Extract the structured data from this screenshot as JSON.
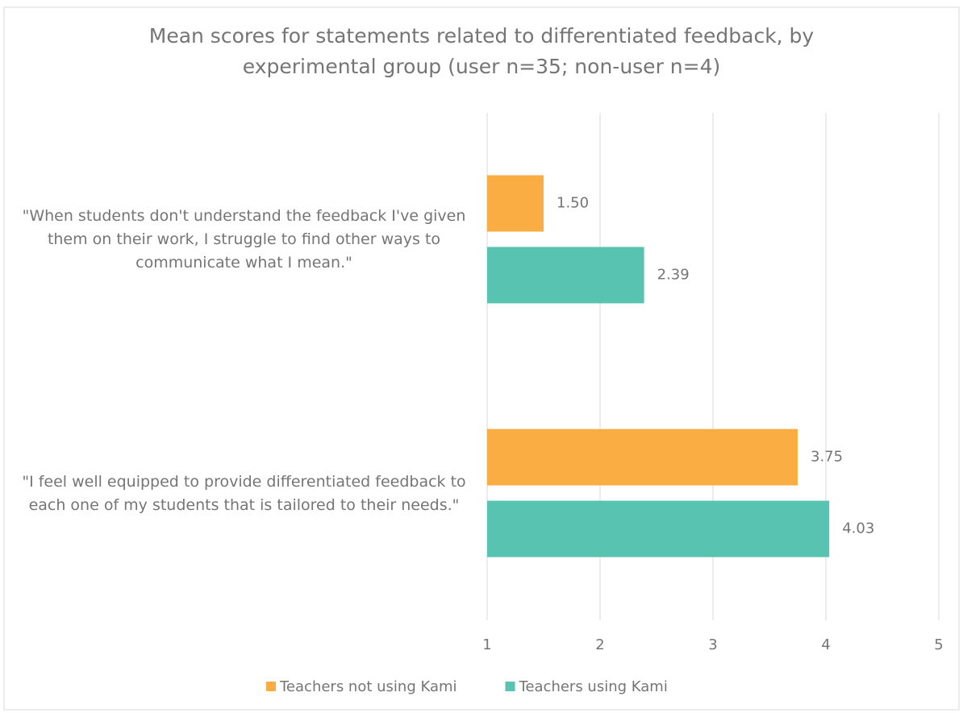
{
  "chart_data": {
    "type": "hbar",
    "title": "Mean scores for statements related to differentiated feedback, by experimental group (user n=35; non-user n=4)",
    "categories": [
      "\"When students don't understand the feedback I've given them on their work, I struggle to find other ways to communicate what I mean.\"",
      "\"I feel well equipped to provide differentiated feedback to each one of my students that is tailored to their needs.\""
    ],
    "series": [
      {
        "name": "Teachers not using Kami",
        "color": "#f9ad42",
        "values": [
          1.5,
          3.75
        ],
        "value_labels": [
          "1.50",
          "3.75"
        ]
      },
      {
        "name": "Teachers using Kami",
        "color": "#58c3b0",
        "values": [
          2.39,
          4.03
        ],
        "value_labels": [
          "2.39",
          "4.03"
        ]
      }
    ],
    "xlim": [
      1,
      5
    ],
    "xticks": [
      1,
      2,
      3,
      4,
      5
    ],
    "grid": true,
    "legend": "bottom"
  }
}
